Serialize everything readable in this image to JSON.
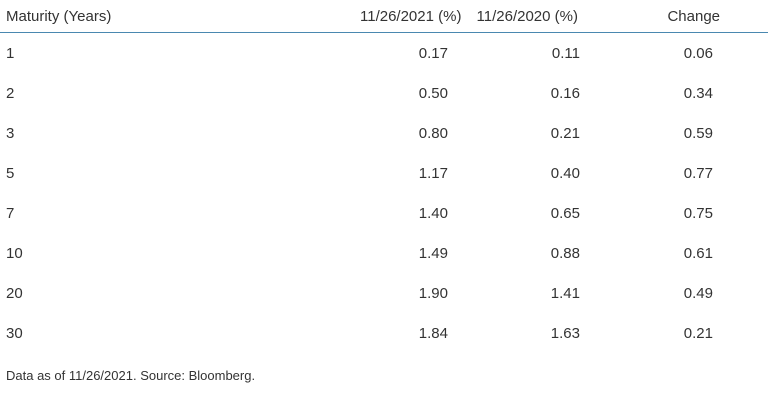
{
  "table": {
    "headers": {
      "maturity": "Maturity (Years)",
      "date_2021": "11/26/2021 (%)",
      "date_2020": "11/26/2020 (%)",
      "change": "Change"
    },
    "rows": [
      {
        "maturity": "1",
        "y2021": "0.17",
        "y2020": "0.11",
        "change": "0.06"
      },
      {
        "maturity": "2",
        "y2021": "0.50",
        "y2020": "0.16",
        "change": "0.34"
      },
      {
        "maturity": "3",
        "y2021": "0.80",
        "y2020": "0.21",
        "change": "0.59"
      },
      {
        "maturity": "5",
        "y2021": "1.17",
        "y2020": "0.40",
        "change": "0.77"
      },
      {
        "maturity": "7",
        "y2021": "1.40",
        "y2020": "0.65",
        "change": "0.75"
      },
      {
        "maturity": "10",
        "y2021": "1.49",
        "y2020": "0.88",
        "change": "0.61"
      },
      {
        "maturity": "20",
        "y2021": "1.90",
        "y2020": "1.41",
        "change": "0.49"
      },
      {
        "maturity": "30",
        "y2021": "1.84",
        "y2020": "1.63",
        "change": "0.21"
      }
    ]
  },
  "footnote": "Data as of 11/26/2021. Source: Bloomberg.",
  "colors": {
    "header_rule": "#4a88b0",
    "text": "#333333"
  }
}
